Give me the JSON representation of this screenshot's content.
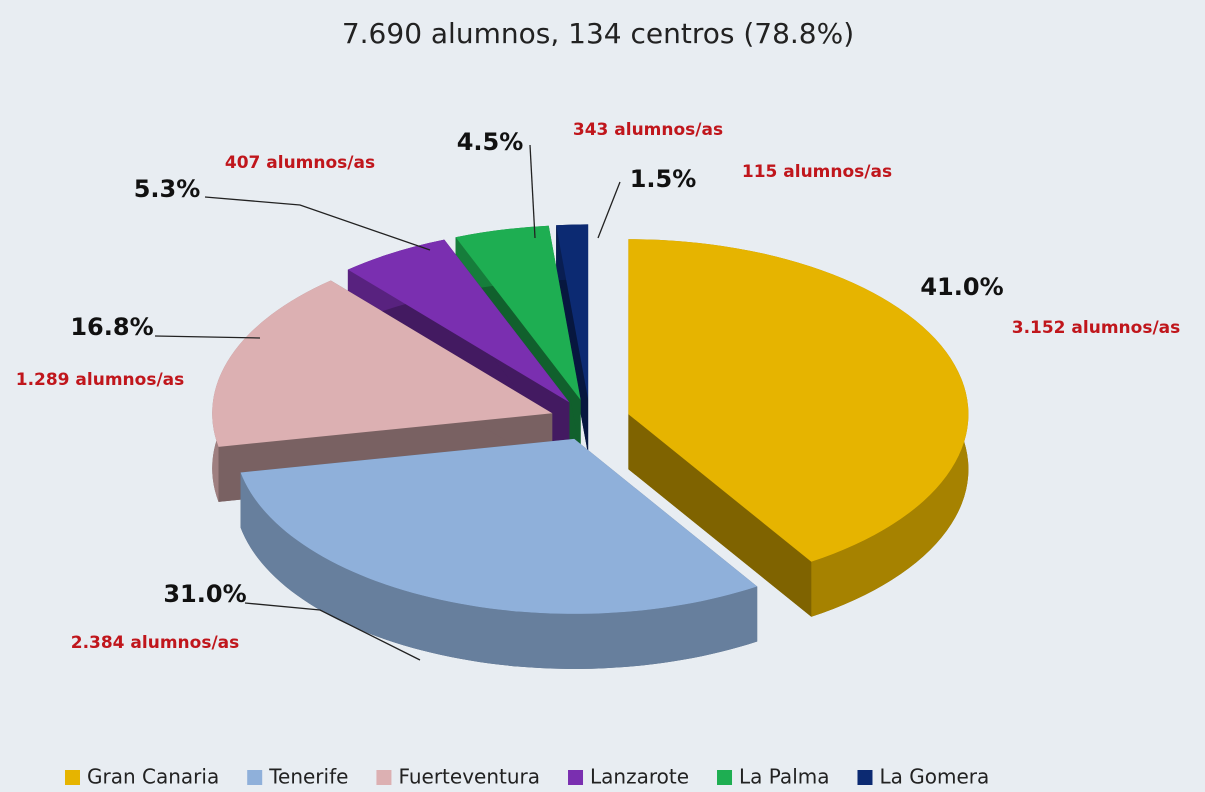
{
  "chart_data": {
    "type": "pie",
    "title": "7.690 alumnos, 134 centros (78.8%)",
    "categories": [
      "Gran Canaria",
      "Tenerife",
      "Fuerteventura",
      "Lanzarote",
      "La Palma",
      "La Gomera"
    ],
    "values": [
      41.0,
      31.0,
      16.8,
      5.3,
      4.5,
      1.5
    ],
    "value_labels": [
      "41.0%",
      "31.0%",
      "16.8%",
      "5.3%",
      "4.5%",
      "1.5%"
    ],
    "student_labels": [
      "3.152 alumnos/as",
      "2.384 alumnos/as",
      "1.289 alumnos/as",
      "407 alumnos/as",
      "343 alumnos/as",
      "115 alumnos/as"
    ],
    "colors": [
      "#e6b400",
      "#8fb0da",
      "#dcb0b2",
      "#7a2fb0",
      "#1eae52",
      "#0c2a72"
    ],
    "legend": "bottom"
  }
}
